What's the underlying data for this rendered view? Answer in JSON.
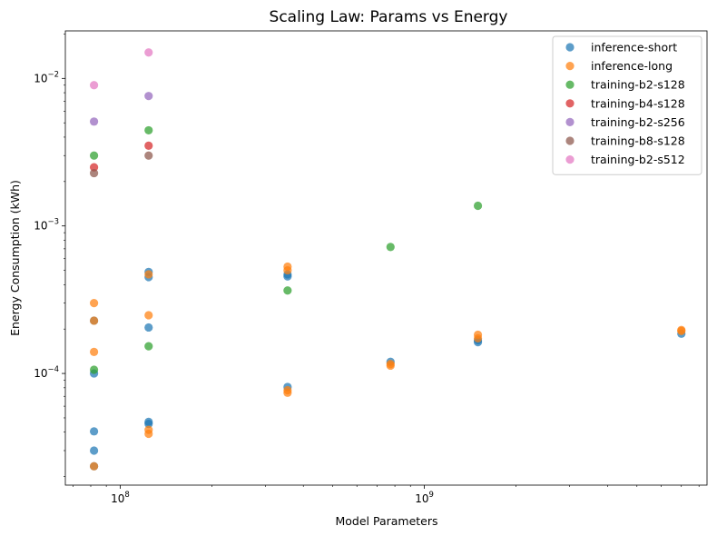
{
  "chart_data": {
    "type": "scatter",
    "title": "Scaling Law: Params vs Energy",
    "xlabel": "Model Parameters",
    "ylabel": "Energy Consumption (kWh)",
    "xscale": "log",
    "yscale": "log",
    "xlim": [
      66000000,
      8500000000
    ],
    "ylim": [
      1.75e-05,
      0.021
    ],
    "grid": false,
    "legend_position": "top-right",
    "x_ticks": [
      {
        "value": 100000000,
        "base": "10",
        "exp": "8"
      },
      {
        "value": 1000000000,
        "base": "10",
        "exp": "9"
      }
    ],
    "y_ticks": [
      {
        "value": 0.0001,
        "base": "10",
        "exp": "−4"
      },
      {
        "value": 0.001,
        "base": "10",
        "exp": "−3"
      },
      {
        "value": 0.01,
        "base": "10",
        "exp": "−2"
      }
    ],
    "series": [
      {
        "name": "inference-short",
        "color": "#1f77b4",
        "points": [
          [
            82000000,
            3e-05
          ],
          [
            82000000,
            4.05e-05
          ],
          [
            82000000,
            0.0001
          ],
          [
            82000000,
            2.35e-05
          ],
          [
            82000000,
            0.000228
          ],
          [
            124000000,
            4.55e-05
          ],
          [
            124000000,
            4.7e-05
          ],
          [
            124000000,
            0.000205
          ],
          [
            124000000,
            0.00045
          ],
          [
            124000000,
            0.000488
          ],
          [
            355000000,
            8.1e-05
          ],
          [
            355000000,
            0.000455
          ],
          [
            355000000,
            0.00047
          ],
          [
            774000000,
            0.00012
          ],
          [
            1500000000,
            0.000163
          ],
          [
            1500000000,
            0.000168
          ],
          [
            7000000000,
            0.000186
          ]
        ]
      },
      {
        "name": "inference-long",
        "color": "#ff7f0e",
        "points": [
          [
            82000000,
            2.35e-05
          ],
          [
            82000000,
            0.00014
          ],
          [
            82000000,
            0.000228
          ],
          [
            82000000,
            0.0003
          ],
          [
            124000000,
            3.9e-05
          ],
          [
            124000000,
            4.15e-05
          ],
          [
            124000000,
            0.000248
          ],
          [
            124000000,
            0.00047
          ],
          [
            355000000,
            7.4e-05
          ],
          [
            355000000,
            7.7e-05
          ],
          [
            355000000,
            0.0005
          ],
          [
            355000000,
            0.00053
          ],
          [
            774000000,
            0.000113
          ],
          [
            774000000,
            0.000116
          ],
          [
            1500000000,
            0.000173
          ],
          [
            1500000000,
            0.000183
          ],
          [
            7000000000,
            0.000194
          ],
          [
            7000000000,
            0.000197
          ]
        ]
      },
      {
        "name": "training-b2-s128",
        "color": "#2ca02c",
        "points": [
          [
            82000000,
            0.000106
          ],
          [
            82000000,
            0.003
          ],
          [
            124000000,
            0.000153
          ],
          [
            124000000,
            0.00445
          ],
          [
            355000000,
            0.000365
          ],
          [
            774000000,
            0.00072
          ],
          [
            1500000000,
            0.00137
          ]
        ]
      },
      {
        "name": "training-b4-s128",
        "color": "#d62728",
        "points": [
          [
            82000000,
            0.0025
          ],
          [
            124000000,
            0.0035
          ]
        ]
      },
      {
        "name": "training-b2-s256",
        "color": "#9467bd",
        "points": [
          [
            82000000,
            0.0051
          ],
          [
            124000000,
            0.0076
          ]
        ]
      },
      {
        "name": "training-b8-s128",
        "color": "#8c564b",
        "points": [
          [
            82000000,
            0.00228
          ],
          [
            124000000,
            0.003
          ]
        ]
      },
      {
        "name": "training-b2-s512",
        "color": "#e377c2",
        "points": [
          [
            82000000,
            0.009
          ],
          [
            124000000,
            0.015
          ]
        ]
      }
    ]
  }
}
